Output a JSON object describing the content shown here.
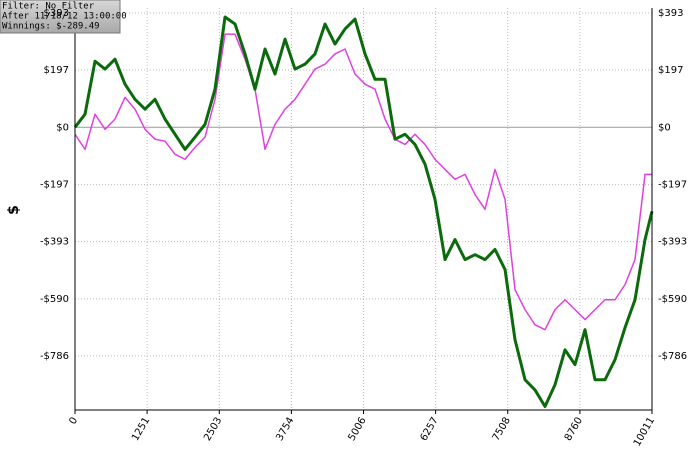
{
  "chart_data": {
    "type": "line",
    "annotations": [
      "Filter: No Filter",
      "After 11/18/12 13:00:00",
      "Winnings: $-289.49"
    ],
    "y_label": "$",
    "x": [
      0,
      174,
      347,
      521,
      694,
      868,
      1041,
      1215,
      1388,
      1562,
      1735,
      1909,
      2082,
      2256,
      2429,
      2603,
      2776,
      2950,
      3123,
      3297,
      3470,
      3644,
      3817,
      3991,
      4164,
      4338,
      4511,
      4685,
      4858,
      5032,
      5205,
      5379,
      5552,
      5726,
      5899,
      6073,
      6246,
      6420,
      6593,
      6767,
      6940,
      7114,
      7287,
      7461,
      7634,
      7808,
      7981,
      8155,
      8328,
      8502,
      8675,
      8849,
      9022,
      9196,
      9369,
      9543,
      9716,
      9890,
      10011
    ],
    "series": [
      {
        "color": "#0b6a0b",
        "width": 3,
        "values": [
          0,
          45,
          227,
          200,
          234,
          148,
          96,
          62,
          96,
          28,
          -24,
          -76,
          -34,
          10,
          131,
          379,
          355,
          252,
          131,
          269,
          183,
          303,
          200,
          217,
          252,
          355,
          286,
          338,
          372,
          252,
          165,
          165,
          -41,
          -24,
          -59,
          -127,
          -248,
          -455,
          -386,
          -455,
          -438,
          -455,
          -420,
          -489,
          -730,
          -868,
          -903,
          -960,
          -885,
          -765,
          -816,
          -696,
          -868,
          -868,
          -799,
          -689,
          -593,
          -386,
          -289
        ]
      },
      {
        "color": "#e040e0",
        "width": 1.5,
        "values": [
          -24,
          -76,
          45,
          -7,
          28,
          103,
          62,
          -7,
          -41,
          -48,
          -93,
          -110,
          -69,
          -34,
          96,
          320,
          320,
          234,
          131,
          -76,
          10,
          62,
          96,
          148,
          200,
          217,
          252,
          269,
          183,
          148,
          131,
          28,
          -41,
          -59,
          -24,
          -59,
          -110,
          -145,
          -179,
          -162,
          -231,
          -282,
          -145,
          -248,
          -558,
          -627,
          -679,
          -696,
          -627,
          -593,
          -627,
          -661,
          -627,
          -593,
          -593,
          -541,
          -455,
          -162,
          -162
        ]
      }
    ],
    "xlim": [
      0,
      10011
    ],
    "xticks": [
      0,
      1251,
      2503,
      3754,
      5006,
      6257,
      7508,
      8760,
      10011
    ],
    "ylim": [
      -972,
      410
    ],
    "yticks": [
      {
        "value": 393,
        "label": "$393"
      },
      {
        "value": 197,
        "label": "$197"
      },
      {
        "value": 0,
        "label": "$0"
      },
      {
        "value": -197,
        "label": "-$197"
      },
      {
        "value": -393,
        "label": "-$393"
      },
      {
        "value": -590,
        "label": "-$590"
      },
      {
        "value": -786,
        "label": "-$786"
      }
    ],
    "grid": true
  }
}
